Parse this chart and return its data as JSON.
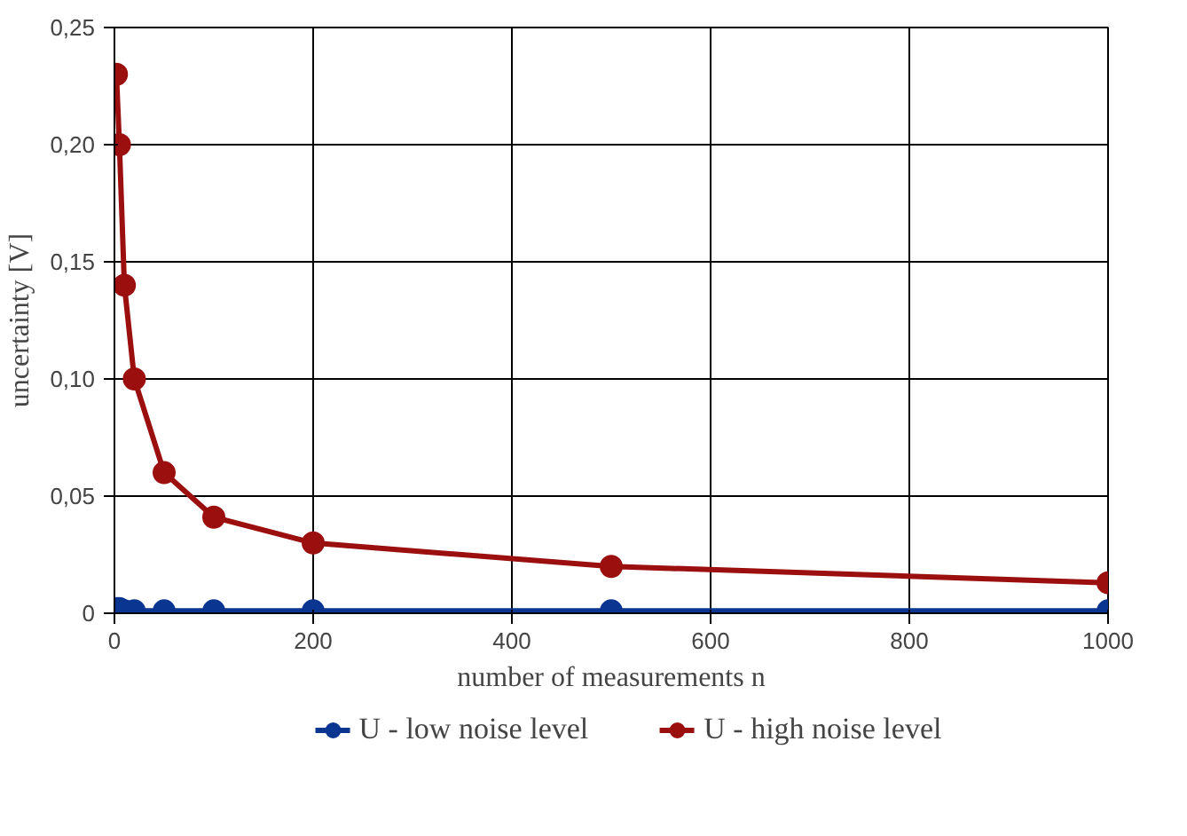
{
  "chart_data": {
    "type": "line",
    "xlabel": "number of measurements n",
    "ylabel": "uncertainty [V]",
    "x": [
      2,
      5,
      10,
      20,
      50,
      100,
      200,
      500,
      1000
    ],
    "series": [
      {
        "name": "U - low noise level",
        "color": "#0a3591",
        "values": [
          0.002,
          0.002,
          0.001,
          0.001,
          0.001,
          0.001,
          0.001,
          0.001,
          0.001
        ]
      },
      {
        "name": "U - high noise level",
        "color": "#9b0f0f",
        "values": [
          0.23,
          0.2,
          0.14,
          0.1,
          0.06,
          0.041,
          0.03,
          0.02,
          0.013
        ]
      }
    ],
    "xlim": [
      0,
      1000
    ],
    "xticks": [
      0,
      200,
      400,
      600,
      800,
      1000
    ],
    "ylim": [
      0,
      0.25
    ],
    "yticks": [
      0,
      {
        "value": 0.05,
        "label": "0,05"
      },
      {
        "value": 0.1,
        "label": "0,10"
      },
      {
        "value": 0.15,
        "label": "0,15"
      },
      {
        "value": 0.2,
        "label": "0,20"
      },
      {
        "value": 0.25,
        "label": "0,25"
      }
    ],
    "grid": true,
    "legend": "bottom",
    "marker": "circle",
    "line_style": "solid"
  }
}
